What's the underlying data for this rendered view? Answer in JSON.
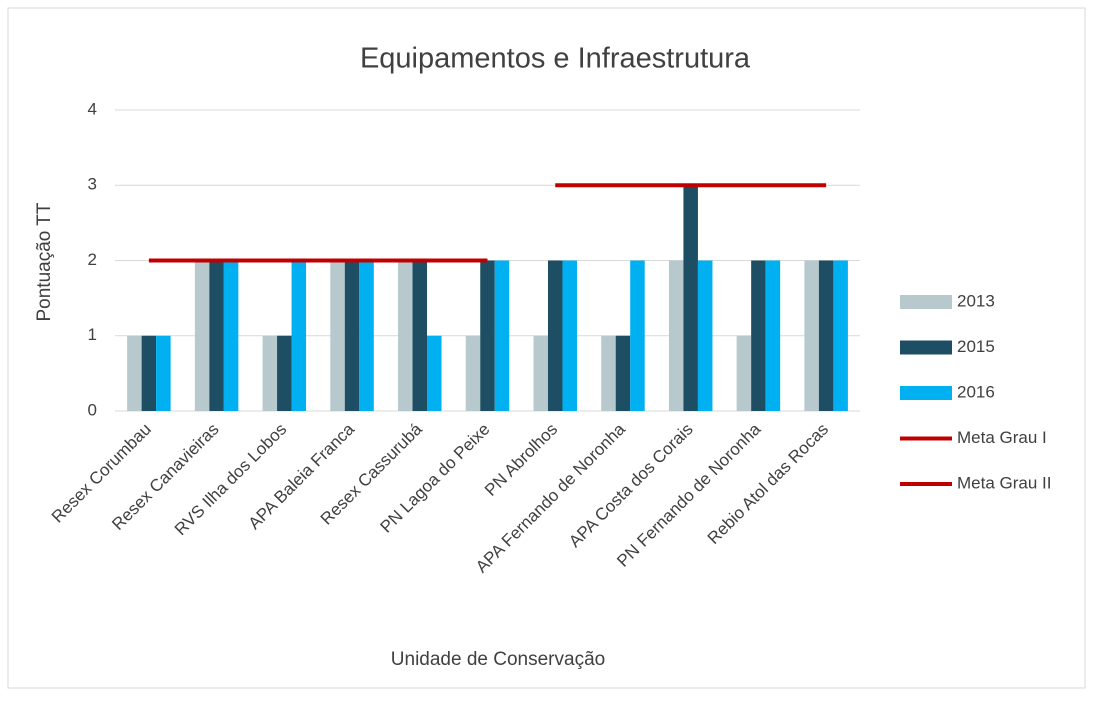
{
  "chart_data": {
    "type": "bar",
    "title": "Equipamentos e Infraestrutura",
    "x_label": "Unidade de Conservação",
    "y_label": "Pontuação TT",
    "categories": [
      "Resex Corumbau",
      "Resex Canavieiras",
      "RVS Ilha dos Lobos",
      "APA Baleia Franca",
      "Resex Cassurubá",
      "PN Lagoa do Peixe",
      "PN Abrolhos",
      "APA Fernando de Noronha",
      "APA Costa dos Corais",
      "PN Fernando de Noronha",
      "Rebio Atol das Rocas"
    ],
    "series": [
      {
        "name": "2013",
        "color": "#b7c9cd",
        "values": [
          1,
          2,
          1,
          2,
          2,
          1,
          1,
          1,
          2,
          1,
          2
        ]
      },
      {
        "name": "2015",
        "color": "#1d4e63",
        "values": [
          1,
          2,
          1,
          2,
          2,
          2,
          2,
          1,
          3,
          2,
          2
        ]
      },
      {
        "name": "2016",
        "color": "#00b0f0",
        "values": [
          1,
          2,
          2,
          2,
          1,
          2,
          2,
          2,
          2,
          2,
          2
        ]
      },
      {
        "name": "Meta Grau I",
        "type": "line",
        "color": "#c00000",
        "values": [
          2,
          2,
          2,
          2,
          2,
          2,
          null,
          null,
          null,
          null,
          null
        ]
      },
      {
        "name": "Meta Grau II",
        "type": "line",
        "color": "#c00000",
        "values": [
          null,
          null,
          null,
          null,
          null,
          null,
          3,
          3,
          3,
          3,
          3
        ]
      }
    ],
    "ylim": [
      0,
      4
    ],
    "yticks": [
      0,
      1,
      2,
      3,
      4
    ],
    "grid": true,
    "legend": "right"
  }
}
